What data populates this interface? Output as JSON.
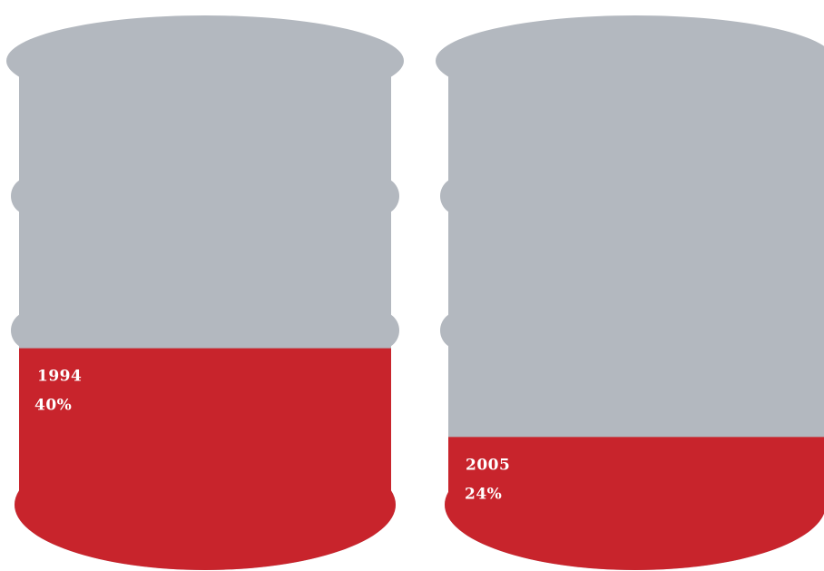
{
  "chart_data": {
    "type": "bar",
    "categories": [
      "1994",
      "2005"
    ],
    "values": [
      40,
      24
    ],
    "value_labels": [
      "40%",
      "24%"
    ],
    "ylim": [
      0,
      100
    ],
    "colors": {
      "filled": "#c8242c",
      "empty": "#b3b8bf"
    }
  }
}
